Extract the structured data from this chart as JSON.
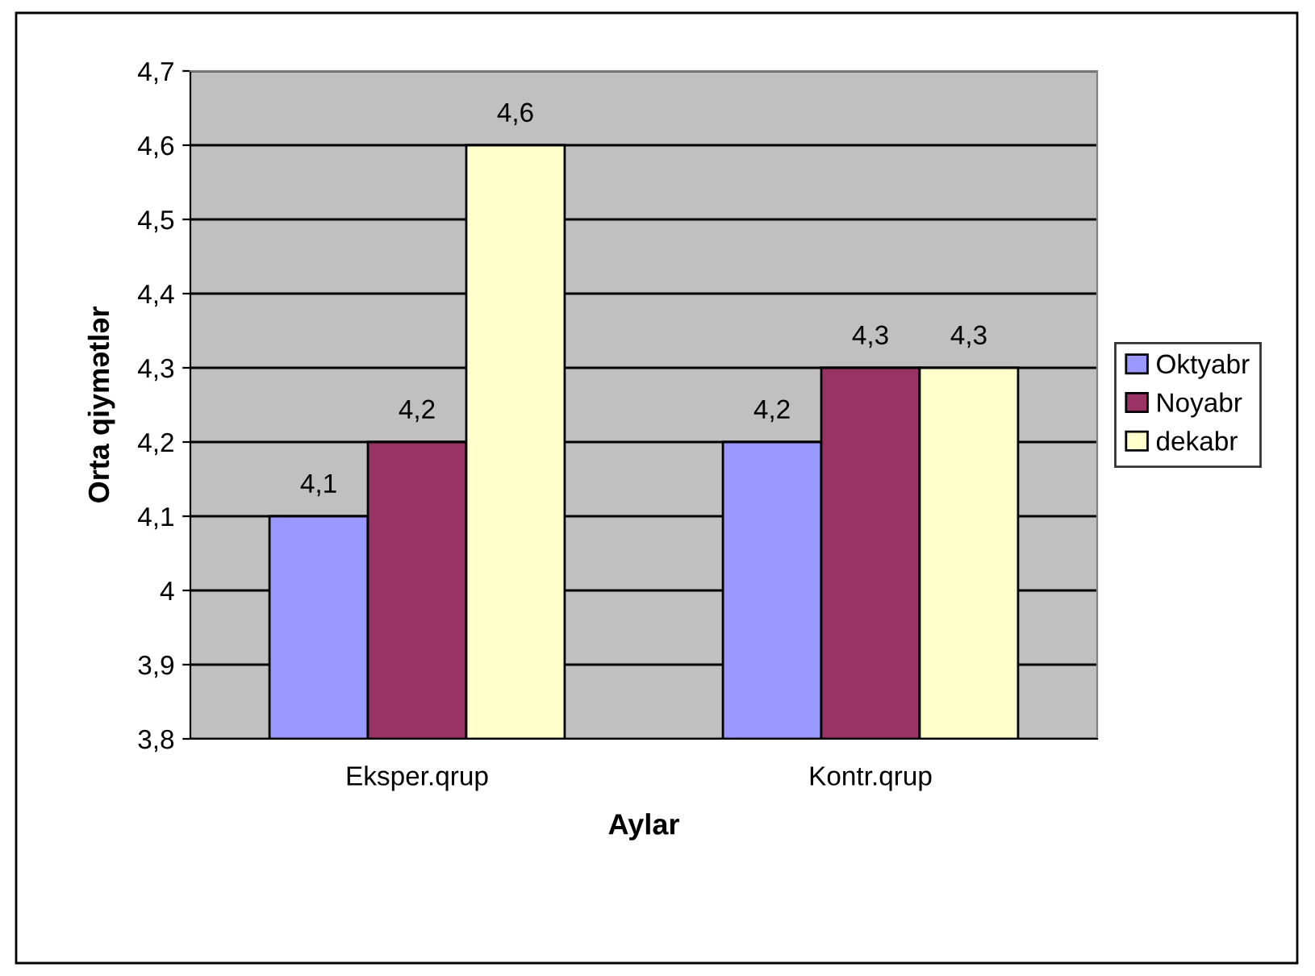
{
  "chart_data": {
    "type": "bar",
    "xlabel": "Aylar",
    "ylabel": "Orta qiymətlər",
    "categories": [
      "Eksper.qrup",
      "Kontr.qrup"
    ],
    "series": [
      {
        "name": "Oktyabr",
        "color": "#9999ff",
        "values": [
          4.1,
          4.2
        ],
        "value_labels": [
          "4,1",
          "4,2"
        ]
      },
      {
        "name": "Noyabr",
        "color": "#993366",
        "values": [
          4.2,
          4.3
        ],
        "value_labels": [
          "4,2",
          "4,3"
        ]
      },
      {
        "name": "dekabr",
        "color": "#ffffcc",
        "values": [
          4.6,
          4.3
        ],
        "value_labels": [
          "4,6",
          "4,3"
        ]
      }
    ],
    "ylim": [
      3.8,
      4.7
    ],
    "yticks": [
      {
        "value": 3.8,
        "label": "3,8"
      },
      {
        "value": 3.9,
        "label": "3,9"
      },
      {
        "value": 4,
        "label": "4"
      },
      {
        "value": 4.1,
        "label": "4,1"
      },
      {
        "value": 4.2,
        "label": "4,2"
      },
      {
        "value": 4.3,
        "label": "4,3"
      },
      {
        "value": 4.4,
        "label": "4,4"
      },
      {
        "value": 4.5,
        "label": "4,5"
      },
      {
        "value": 4.6,
        "label": "4,6"
      },
      {
        "value": 4.7,
        "label": "4,7"
      }
    ],
    "grid": "y",
    "legend": "right"
  }
}
